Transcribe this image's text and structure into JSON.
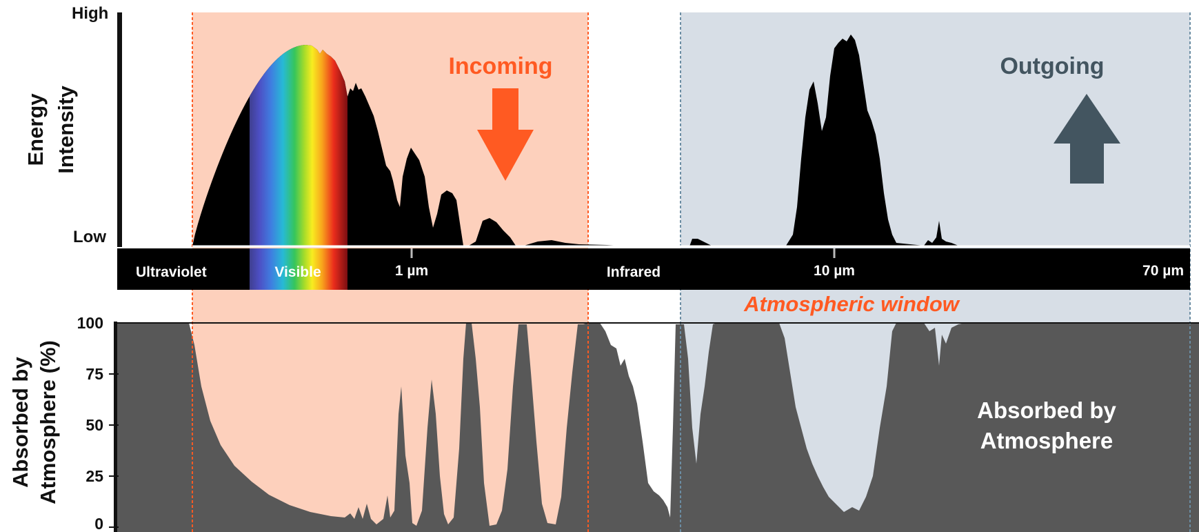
{
  "colors": {
    "incoming_region": "#fdd0bc",
    "outgoing_region": "#d7dee6",
    "incoming_accent": "#ff5a22",
    "outgoing_accent": "#435560",
    "absorption_fill": "#585858",
    "spectrum_fill": "#000000"
  },
  "top_panel": {
    "y_label_line1": "Energy",
    "y_label_line2": "Intensity",
    "y_high": "High",
    "y_low": "Low",
    "incoming_label": "Incoming",
    "outgoing_label": "Outgoing",
    "arrow_incoming_icon": "arrow-down-icon",
    "arrow_outgoing_icon": "arrow-up-icon"
  },
  "band": {
    "ultraviolet": "Ultraviolet",
    "visible": "Visible",
    "tick_1um": "1 µm",
    "infrared": "Infrared",
    "tick_10um": "10 µm",
    "tick_70um": "70 µm"
  },
  "window_label": "Atmospheric window",
  "bottom_panel": {
    "y_label_line1": "Absorbed by",
    "y_label_line2": "Atmosphere (%)",
    "ticks": [
      "100",
      "75",
      "50",
      "25",
      "0"
    ],
    "area_label_line1": "Absorbed by",
    "area_label_line2": "Atmosphere"
  }
}
